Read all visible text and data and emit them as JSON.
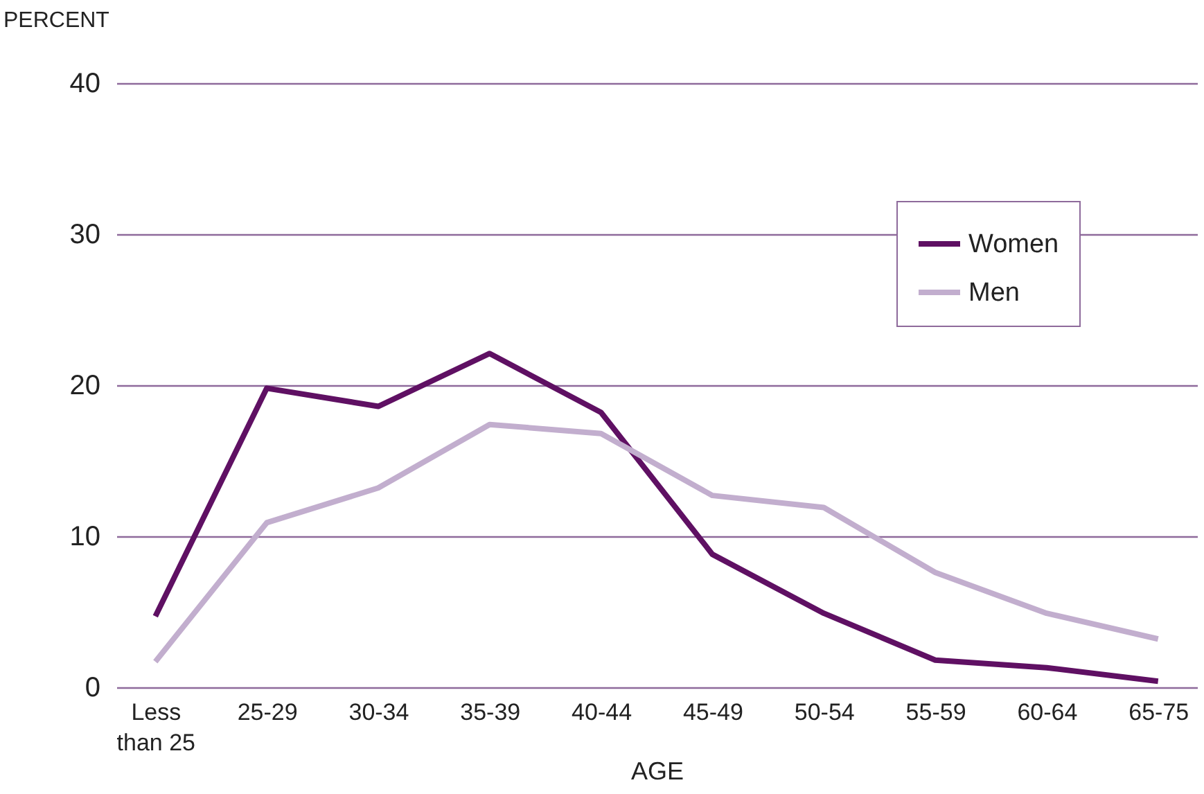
{
  "chart_data": {
    "type": "line",
    "xlabel": "AGE",
    "ylabel": "PERCENT",
    "categories": [
      "Less than 25",
      "25-29",
      "30-34",
      "35-39",
      "40-44",
      "45-49",
      "50-54",
      "55-59",
      "60-64",
      "65-75"
    ],
    "series": [
      {
        "name": "Women",
        "color": "#5f1063",
        "values": [
          4.7,
          19.8,
          18.6,
          22.1,
          18.2,
          8.8,
          4.9,
          1.8,
          1.3,
          0.4
        ]
      },
      {
        "name": "Men",
        "color": "#c2aece",
        "values": [
          1.7,
          10.9,
          13.2,
          17.4,
          16.8,
          12.7,
          11.9,
          7.6,
          4.9,
          3.2
        ]
      }
    ],
    "ylim": [
      0,
      40
    ],
    "yticks": [
      0,
      10,
      20,
      30,
      40
    ],
    "grid": "y",
    "legend": "top right",
    "marker": "none",
    "line_style": "solid"
  }
}
